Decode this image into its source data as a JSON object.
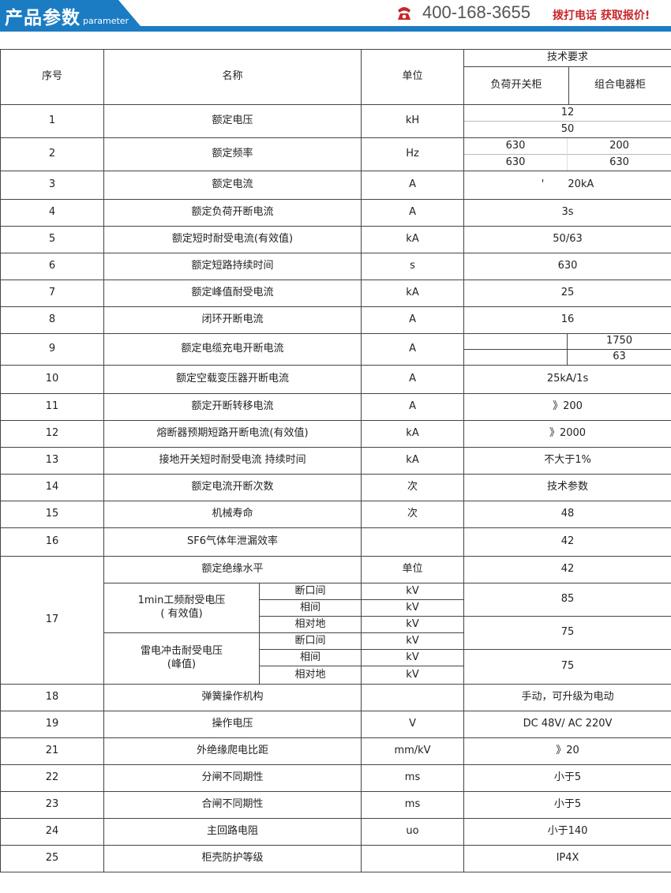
{
  "header": {
    "title": "产品参数",
    "subtitle": "parameter",
    "phone": "400-168-3655",
    "cta": "拨打电话 获取报价!",
    "accent": "#1b7cc3",
    "cta_color": "#c8262b"
  },
  "table": {
    "head": {
      "seq": "序号",
      "name": "名称",
      "unit": "单位",
      "tech": "技术要求",
      "col_a": "负荷开关柜",
      "col_b": "组合电器柜"
    },
    "r1": {
      "seq": "1",
      "name": "额定电压",
      "unit": "kH",
      "v1": "12",
      "v2": "50"
    },
    "r2": {
      "seq": "2",
      "name": "额定频率",
      "unit": "Hz",
      "a1": "630",
      "b1": "200",
      "a2": "630",
      "b2": "630"
    },
    "r3": {
      "seq": "3",
      "name": "额定电流",
      "unit": "A",
      "mark": "'",
      "value": "20kA"
    },
    "r9": {
      "seq": "9",
      "name": "额定电缆充电开断电流",
      "unit": "A",
      "b1": "1750",
      "b2": "63"
    },
    "simple_a": [
      {
        "seq": "4",
        "name": "额定负荷开断电流",
        "unit": "A",
        "value": "3s"
      },
      {
        "seq": "5",
        "name": "额定短时耐受电流(有效值)",
        "unit": "kA",
        "value": "50/63"
      },
      {
        "seq": "6",
        "name": "额定短路持续时间",
        "unit": "s",
        "value": "630"
      },
      {
        "seq": "7",
        "name": "额定峰值耐受电流",
        "unit": "kA",
        "value": "25"
      },
      {
        "seq": "8",
        "name": "闭环开断电流",
        "unit": "A",
        "value": "16"
      }
    ],
    "simple_b": [
      {
        "seq": "10",
        "name": "额定空载变压器开断电流",
        "unit": "A",
        "value": "25kA/1s"
      },
      {
        "seq": "11",
        "name": "额定开断转移电流",
        "unit": "A",
        "value": "》200"
      },
      {
        "seq": "12",
        "name": "熔断器预期短路开断电流(有效值)",
        "unit": "kA",
        "value": "》2000"
      },
      {
        "seq": "13",
        "name": "接地开关短时耐受电流 持续时间",
        "unit": "kA",
        "value": "不大于1%"
      },
      {
        "seq": "14",
        "name": "额定电流开断次数",
        "unit": "次",
        "value": "技术参数"
      },
      {
        "seq": "15",
        "name": "机械寿命",
        "unit": "次",
        "value": "48"
      },
      {
        "seq": "16",
        "name": "SF6气体年泄漏效率",
        "unit": "",
        "value": "42"
      }
    ],
    "r17": {
      "seq": "17",
      "name": "额定绝缘水平",
      "unit": "单位",
      "value": "42",
      "g1": "1min工频耐受电压",
      "g1b": "( 有效值)",
      "g2": "雷电冲击耐受电压",
      "g2b": "(峰值)",
      "s1": "断口间",
      "s2": "相间",
      "s3": "相对地",
      "kv": "kV",
      "v85": "85",
      "v75a": "75",
      "v75b": "75"
    },
    "simple_c": [
      {
        "seq": "18",
        "name": "弹簧操作机构",
        "unit": "",
        "value": "手动，可升级为电动"
      },
      {
        "seq": "19",
        "name": "操作电压",
        "unit": "V",
        "value": "DC 48V/ AC 220V"
      },
      {
        "seq": "21",
        "name": "外绝缘爬电比距",
        "unit": "mm/kV",
        "value": "》20"
      },
      {
        "seq": "22",
        "name": "分闸不同期性",
        "unit": "ms",
        "value": "小于5"
      },
      {
        "seq": "23",
        "name": "合闸不同期性",
        "unit": "ms",
        "value": "小于5"
      },
      {
        "seq": "24",
        "name": "主回路电阻",
        "unit": "uo",
        "value": "小于140"
      },
      {
        "seq": "25",
        "name": "柜壳防护等级",
        "unit": "",
        "value": "IP4X"
      }
    ]
  }
}
